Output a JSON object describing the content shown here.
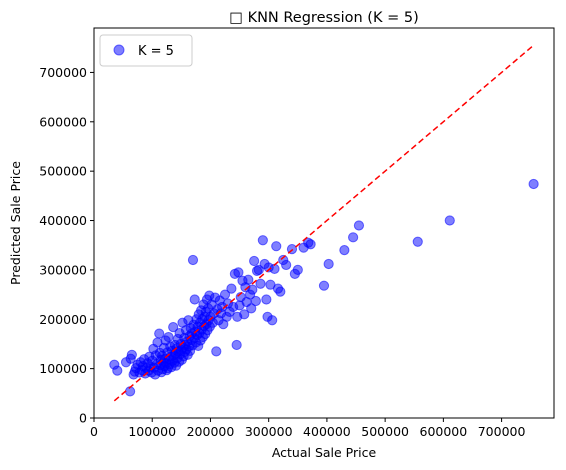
{
  "chart_data": {
    "type": "scatter",
    "title": "□ KNN Regression (K = 5)",
    "xlabel": "Actual Sale Price",
    "ylabel": "Predicted Sale Price",
    "xlim": [
      0,
      790000
    ],
    "ylim": [
      0,
      790000
    ],
    "xticks": [
      0,
      100000,
      200000,
      300000,
      400000,
      500000,
      600000,
      700000
    ],
    "yticks": [
      0,
      100000,
      200000,
      300000,
      400000,
      500000,
      600000,
      700000
    ],
    "grid": false,
    "legend_position": "top-left",
    "colors": {
      "points": "#0000ff",
      "points_edge": "#0000ff",
      "reference_line": "#ff0000",
      "axes": "#000000"
    },
    "reference_line": {
      "style": "dashed",
      "from": [
        34900,
        34900
      ],
      "to": [
        755000,
        755000
      ]
    },
    "series": [
      {
        "name": "K = 5",
        "points": [
          [
            34900,
            108000
          ],
          [
            40000,
            96000
          ],
          [
            55000,
            113000
          ],
          [
            62000,
            54000
          ],
          [
            63000,
            120000
          ],
          [
            65000,
            128000
          ],
          [
            68000,
            88000
          ],
          [
            70000,
            94000
          ],
          [
            72000,
            101000
          ],
          [
            75000,
            108000
          ],
          [
            78000,
            92000
          ],
          [
            80000,
            113000
          ],
          [
            82000,
            97000
          ],
          [
            84000,
            105000
          ],
          [
            86000,
            119000
          ],
          [
            88000,
            90000
          ],
          [
            90000,
            101000
          ],
          [
            92000,
            111000
          ],
          [
            94000,
            96000
          ],
          [
            95000,
            124000
          ],
          [
            97000,
            104000
          ],
          [
            99000,
            92000
          ],
          [
            100000,
            116000
          ],
          [
            102000,
            140000
          ],
          [
            103000,
            102000
          ],
          [
            105000,
            88000
          ],
          [
            106000,
            127000
          ],
          [
            108000,
            109000
          ],
          [
            109000,
            153000
          ],
          [
            110000,
            96000
          ],
          [
            112000,
            171000
          ],
          [
            113000,
            132000
          ],
          [
            114000,
            107000
          ],
          [
            115000,
            118000
          ],
          [
            116000,
            93000
          ],
          [
            117000,
            126000
          ],
          [
            118000,
            99000
          ],
          [
            119000,
            113000
          ],
          [
            120000,
            142000
          ],
          [
            121000,
            105000
          ],
          [
            122000,
            120000
          ],
          [
            123000,
            157000
          ],
          [
            124000,
            111000
          ],
          [
            125000,
            97000
          ],
          [
            126000,
            133000
          ],
          [
            127000,
            101000
          ],
          [
            128000,
            164000
          ],
          [
            129000,
            119000
          ],
          [
            130000,
            109000
          ],
          [
            131000,
            145000
          ],
          [
            132000,
            124000
          ],
          [
            133000,
            103000
          ],
          [
            134000,
            136000
          ],
          [
            135000,
            116000
          ],
          [
            136000,
            184000
          ],
          [
            137000,
            127000
          ],
          [
            138000,
            112000
          ],
          [
            139000,
            148000
          ],
          [
            140000,
            131000
          ],
          [
            141000,
            106000
          ],
          [
            142000,
            141000
          ],
          [
            143000,
            121000
          ],
          [
            144000,
            160000
          ],
          [
            145000,
            135000
          ],
          [
            146000,
            114000
          ],
          [
            147000,
            172000
          ],
          [
            148000,
            129000
          ],
          [
            149000,
            150000
          ],
          [
            150000,
            138000
          ],
          [
            151000,
            118000
          ],
          [
            152000,
            193000
          ],
          [
            153000,
            143000
          ],
          [
            154000,
            125000
          ],
          [
            155000,
            162000
          ],
          [
            156000,
            134000
          ],
          [
            157000,
            148000
          ],
          [
            158000,
            178000
          ],
          [
            159000,
            139000
          ],
          [
            160000,
            155000
          ],
          [
            161000,
            128000
          ],
          [
            162000,
            198000
          ],
          [
            163000,
            145000
          ],
          [
            164000,
            166000
          ],
          [
            165000,
            136000
          ],
          [
            166000,
            182000
          ],
          [
            167000,
            158000
          ],
          [
            168000,
            171000
          ],
          [
            169000,
            147000
          ],
          [
            170000,
            320000
          ],
          [
            171000,
            189000
          ],
          [
            172000,
            162000
          ],
          [
            173000,
            240000
          ],
          [
            174000,
            175000
          ],
          [
            175000,
            153000
          ],
          [
            176000,
            200000
          ],
          [
            177000,
            168000
          ],
          [
            178000,
            185000
          ],
          [
            179000,
            146000
          ],
          [
            180000,
            210000
          ],
          [
            181000,
            172000
          ],
          [
            182000,
            193000
          ],
          [
            183000,
            157000
          ],
          [
            184000,
            218000
          ],
          [
            185000,
            179000
          ],
          [
            186000,
            200000
          ],
          [
            187000,
            164000
          ],
          [
            188000,
            230000
          ],
          [
            189000,
            186000
          ],
          [
            190000,
            205000
          ],
          [
            191000,
            170000
          ],
          [
            192000,
            215000
          ],
          [
            193000,
            190000
          ],
          [
            194000,
            240000
          ],
          [
            195000,
            178000
          ],
          [
            196000,
            222000
          ],
          [
            197000,
            198000
          ],
          [
            198000,
            248000
          ],
          [
            199000,
            185000
          ],
          [
            200000,
            205000
          ],
          [
            202000,
            230000
          ],
          [
            204000,
            193000
          ],
          [
            206000,
            212000
          ],
          [
            208000,
            244000
          ],
          [
            210000,
            135000
          ],
          [
            212000,
            220000
          ],
          [
            214000,
            198000
          ],
          [
            216000,
            238000
          ],
          [
            218000,
            212000
          ],
          [
            220000,
            225000
          ],
          [
            222000,
            190000
          ],
          [
            225000,
            250000
          ],
          [
            228000,
            205000
          ],
          [
            230000,
            232000
          ],
          [
            233000,
            215000
          ],
          [
            236000,
            262000
          ],
          [
            239000,
            225000
          ],
          [
            242000,
            292000
          ],
          [
            245000,
            148000
          ],
          [
            246000,
            205000
          ],
          [
            248000,
            295000
          ],
          [
            250000,
            228000
          ],
          [
            252000,
            245000
          ],
          [
            255000,
            278000
          ],
          [
            258000,
            210000
          ],
          [
            260000,
            265000
          ],
          [
            262000,
            235000
          ],
          [
            265000,
            280000
          ],
          [
            268000,
            250000
          ],
          [
            270000,
            222000
          ],
          [
            272000,
            260000
          ],
          [
            275000,
            318000
          ],
          [
            278000,
            237000
          ],
          [
            280000,
            298000
          ],
          [
            283000,
            300000
          ],
          [
            286000,
            272000
          ],
          [
            290000,
            360000
          ],
          [
            293000,
            312000
          ],
          [
            296000,
            240000
          ],
          [
            298000,
            205000
          ],
          [
            300000,
            305000
          ],
          [
            303000,
            270000
          ],
          [
            306000,
            198000
          ],
          [
            310000,
            302000
          ],
          [
            313000,
            348000
          ],
          [
            316000,
            262000
          ],
          [
            320000,
            256000
          ],
          [
            325000,
            320000
          ],
          [
            330000,
            310000
          ],
          [
            340000,
            342000
          ],
          [
            345000,
            292000
          ],
          [
            350000,
            300000
          ],
          [
            360000,
            345000
          ],
          [
            368000,
            355000
          ],
          [
            372000,
            352000
          ],
          [
            395000,
            268000
          ],
          [
            403000,
            312000
          ],
          [
            430000,
            340000
          ],
          [
            445000,
            366000
          ],
          [
            455000,
            390000
          ],
          [
            556000,
            357000
          ],
          [
            611000,
            400000
          ],
          [
            755000,
            474000
          ]
        ]
      }
    ]
  }
}
